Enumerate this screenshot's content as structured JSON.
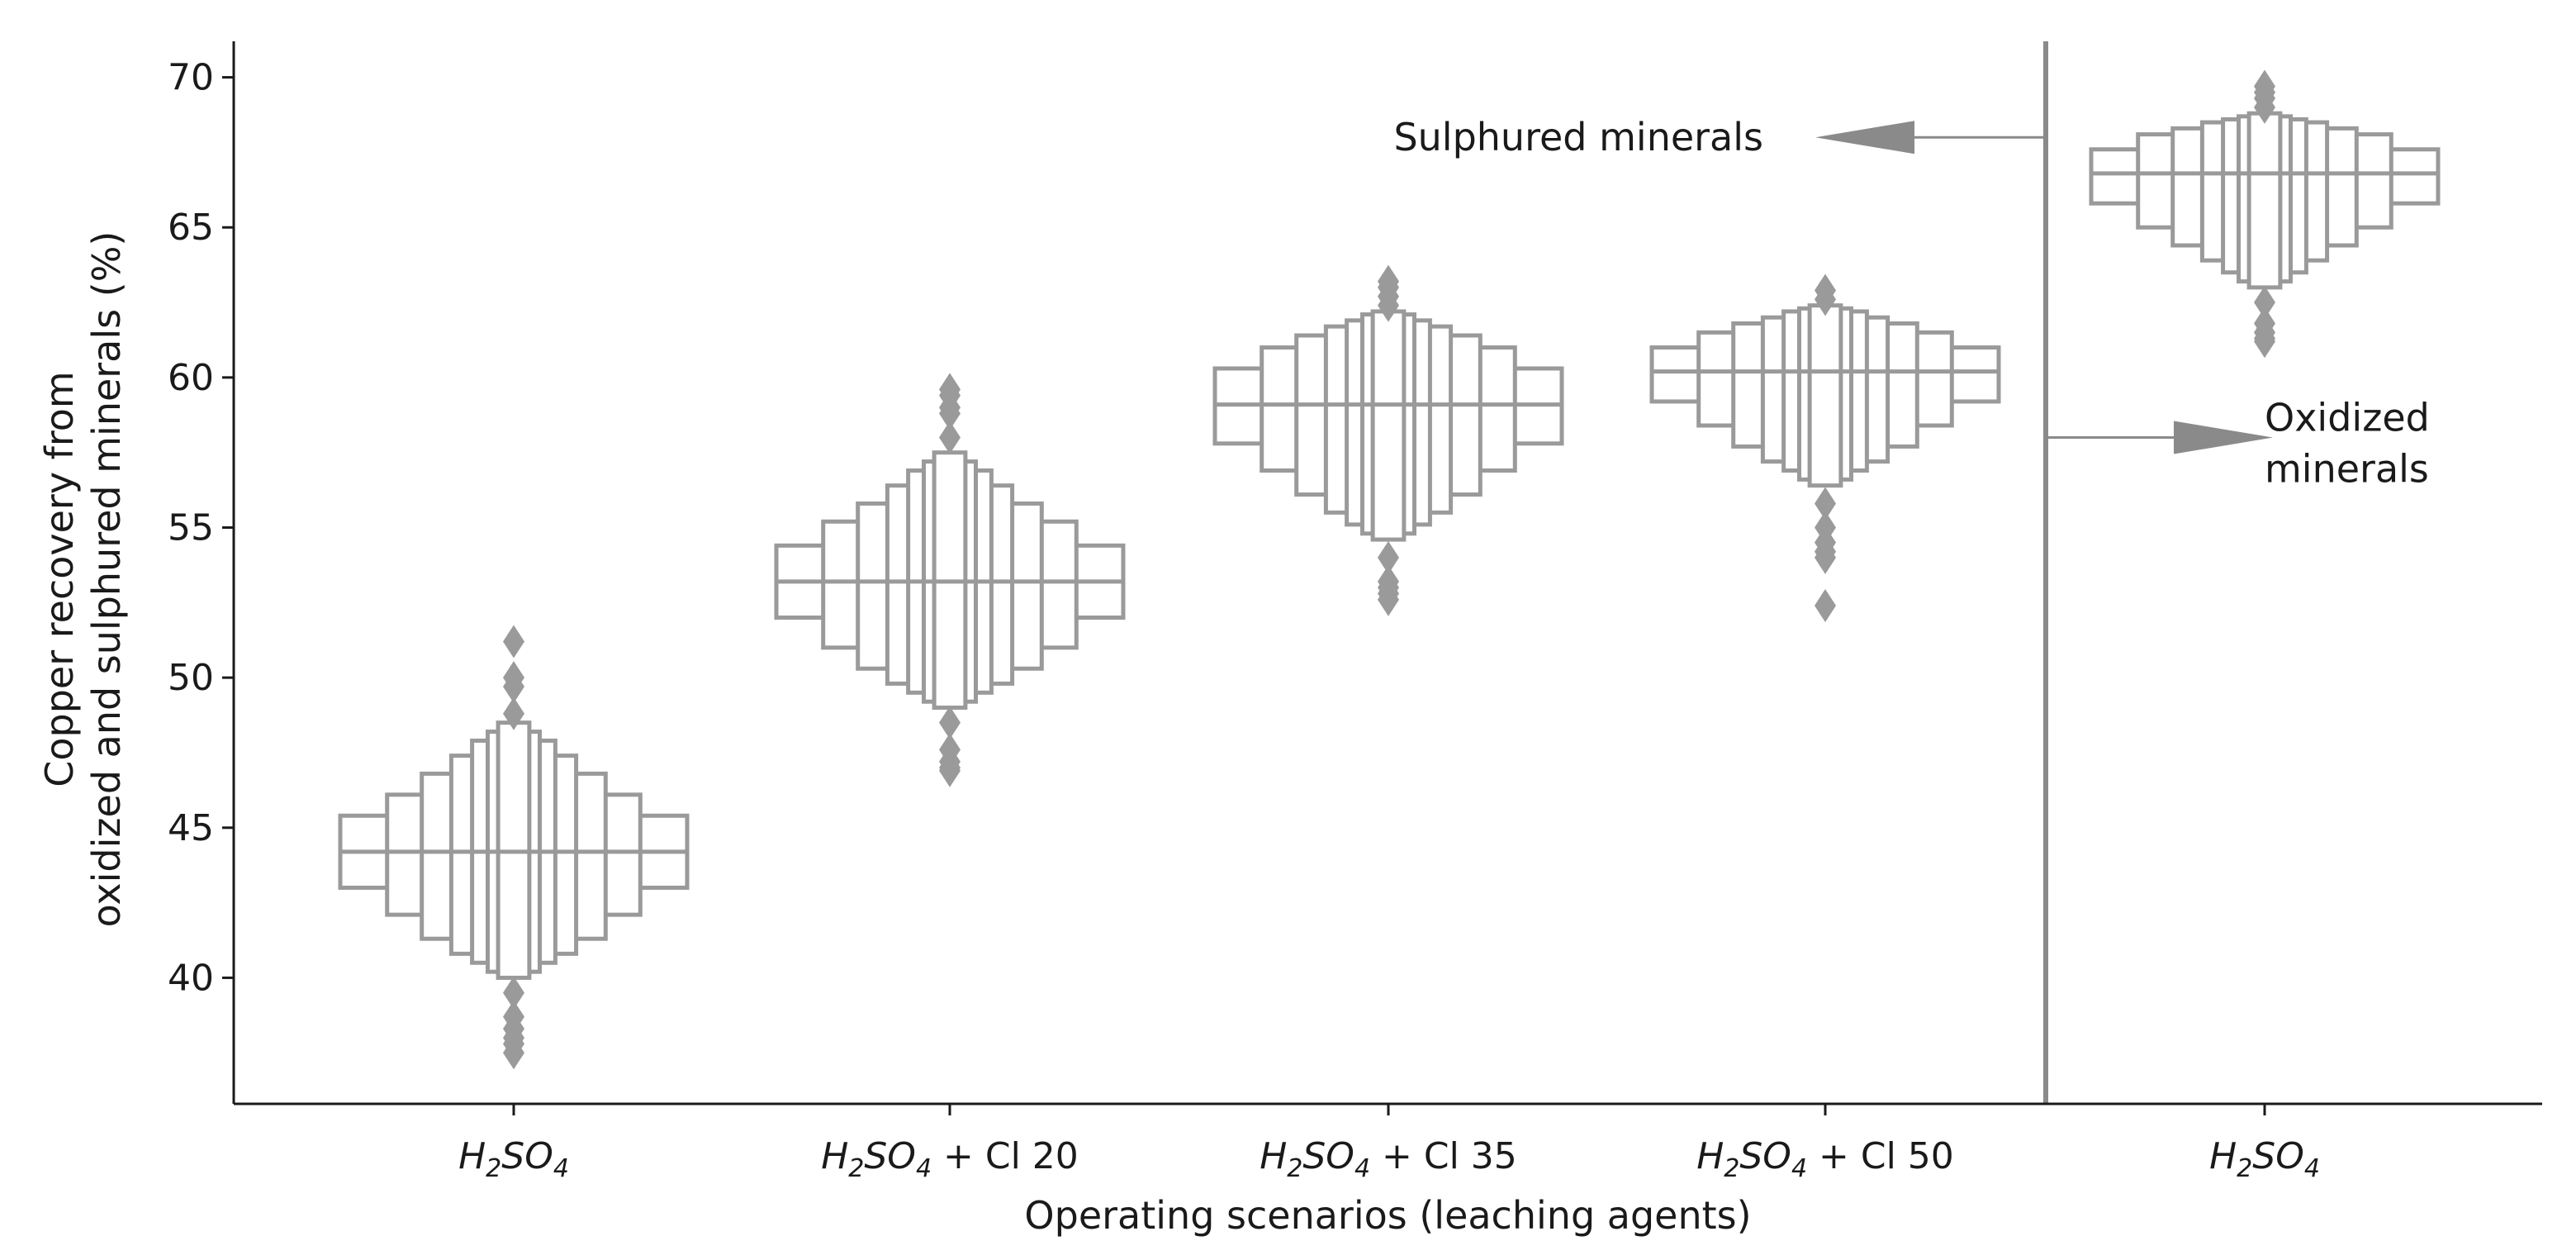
{
  "chart_data": {
    "type": "boxen",
    "xlabel": "Operating scenarios (leaching agents)",
    "ylabel_lines": [
      "Copper recovery from",
      "oxidized and sulphured minerals (%)"
    ],
    "ylim": [
      35.8,
      71.2
    ],
    "yticks": [
      40,
      45,
      50,
      55,
      60,
      65,
      70
    ],
    "categories": [
      {
        "base": "H",
        "sub1": "2",
        "mid": "SO",
        "sub2": "4",
        "suffix": ""
      },
      {
        "base": "H",
        "sub1": "2",
        "mid": "SO",
        "sub2": "4",
        "suffix": " + Cl 20"
      },
      {
        "base": "H",
        "sub1": "2",
        "mid": "SO",
        "sub2": "4",
        "suffix": " + Cl 35"
      },
      {
        "base": "H",
        "sub1": "2",
        "mid": "SO",
        "sub2": "4",
        "suffix": " + Cl 50"
      },
      {
        "base": "H",
        "sub1": "2",
        "mid": "SO",
        "sub2": "4",
        "suffix": ""
      }
    ],
    "series": [
      {
        "median": 44.2,
        "levels": [
          [
            43.0,
            45.4
          ],
          [
            42.1,
            46.1
          ],
          [
            41.3,
            46.8
          ],
          [
            40.8,
            47.4
          ],
          [
            40.5,
            47.9
          ],
          [
            40.2,
            48.2
          ],
          [
            40.0,
            48.5
          ]
        ],
        "outliers": [
          39.5,
          38.7,
          38.3,
          38.0,
          37.8,
          37.5,
          48.8,
          49.7,
          50.0,
          51.2
        ]
      },
      {
        "median": 53.2,
        "levels": [
          [
            52.0,
            54.4
          ],
          [
            51.0,
            55.2
          ],
          [
            50.3,
            55.8
          ],
          [
            49.8,
            56.4
          ],
          [
            49.5,
            56.9
          ],
          [
            49.2,
            57.2
          ],
          [
            49.0,
            57.5
          ]
        ],
        "outliers": [
          48.5,
          47.6,
          47.2,
          47.0,
          46.9,
          58.0,
          58.8,
          59.0,
          59.4,
          59.6
        ]
      },
      {
        "median": 59.1,
        "levels": [
          [
            57.8,
            60.3
          ],
          [
            56.9,
            61.0
          ],
          [
            56.1,
            61.4
          ],
          [
            55.5,
            61.7
          ],
          [
            55.1,
            61.9
          ],
          [
            54.8,
            62.1
          ],
          [
            54.6,
            62.2
          ]
        ],
        "outliers": [
          54.0,
          53.2,
          53.0,
          52.8,
          52.6,
          62.4,
          62.7,
          63.0,
          63.2
        ]
      },
      {
        "median": 60.2,
        "levels": [
          [
            59.2,
            61.0
          ],
          [
            58.4,
            61.5
          ],
          [
            57.7,
            61.8
          ],
          [
            57.2,
            62.0
          ],
          [
            56.9,
            62.2
          ],
          [
            56.6,
            62.3
          ],
          [
            56.4,
            62.4
          ]
        ],
        "outliers": [
          55.8,
          55.0,
          54.5,
          54.2,
          54.0,
          52.4,
          62.6,
          62.9
        ]
      },
      {
        "median": 66.8,
        "levels": [
          [
            65.8,
            67.6
          ],
          [
            65.0,
            68.1
          ],
          [
            64.4,
            68.3
          ],
          [
            63.9,
            68.5
          ],
          [
            63.5,
            68.6
          ],
          [
            63.2,
            68.7
          ],
          [
            63.0,
            68.8
          ]
        ],
        "outliers": [
          62.5,
          61.8,
          61.5,
          61.3,
          61.2,
          69.0,
          69.3,
          69.5,
          69.7
        ]
      }
    ],
    "separator_after_index": 3,
    "annotations": {
      "sulphured": {
        "text": "Sulphured minerals",
        "y": 68.0
      },
      "oxidized": {
        "lines": [
          "Oxidized",
          "minerals"
        ],
        "y": 58.0
      }
    },
    "colors": {
      "box": "#9a9a9a",
      "axis": "#1a1a1a",
      "separator": "#8a8a8a",
      "arrow": "#8a8a8a"
    }
  }
}
